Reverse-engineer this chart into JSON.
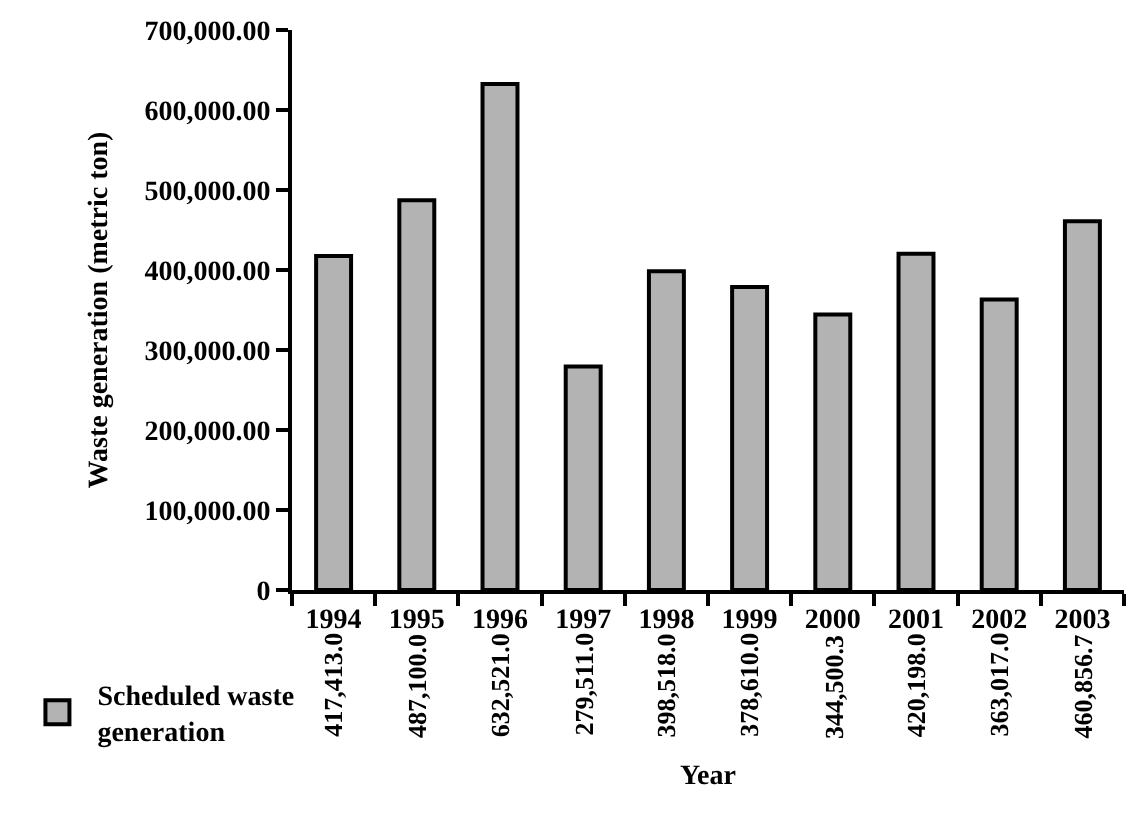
{
  "chart_data": {
    "type": "bar",
    "annotations": [
      "Year"
    ],
    "ylabel": "Waste generation (metric ton)",
    "categories": [
      "1994",
      "1995",
      "1996",
      "1997",
      "1998",
      "1999",
      "2000",
      "2001",
      "2002",
      "2003"
    ],
    "series": [
      {
        "name": "Scheduled waste generation",
        "color": "#b3b3b3",
        "values": [
          417413.0,
          487100.0,
          632521.0,
          279511.0,
          398518.0,
          378610.0,
          344500.3,
          420198.0,
          363017.0,
          460856.7
        ],
        "value_labels": [
          "417,413.0",
          "487,100.0",
          "632,521.0",
          "279,511.0",
          "398,518.0",
          "378,610.0",
          "344,500.3",
          "420,198.0",
          "363,017.0",
          "460,856.7"
        ]
      }
    ],
    "ylim": [
      0,
      700000
    ],
    "yticks": [
      0,
      {
        "value": 100000,
        "label": "100,000.00"
      },
      {
        "value": 200000,
        "label": "200,000.00"
      },
      {
        "value": 300000,
        "label": "300,000.00"
      },
      {
        "value": 400000,
        "label": "400,000.00"
      },
      {
        "value": 500000,
        "label": "500,000.00"
      },
      {
        "value": 600000,
        "label": "600,000.00"
      },
      {
        "value": 700000,
        "label": "700,000.00"
      }
    ],
    "legend": "bottom left"
  }
}
